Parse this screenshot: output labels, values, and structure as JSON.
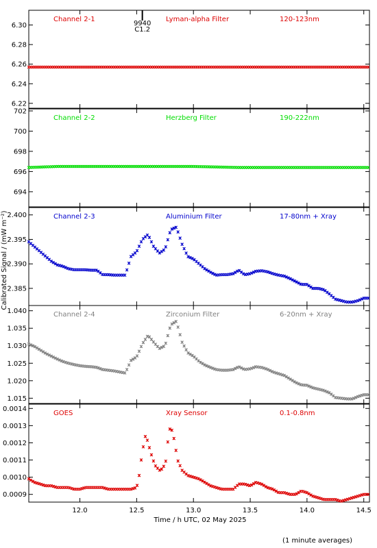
{
  "chart_data": [
    {
      "type": "scatter",
      "label": "Channel 2-1",
      "filter": "Lyman-alpha Filter",
      "band": "120-123nm",
      "color": "#dd0000",
      "ylim": [
        6.215,
        6.315
      ],
      "yticks": [
        6.22,
        6.24,
        6.26,
        6.28,
        6.3
      ],
      "ytick_labels": [
        "6.22",
        "6.24",
        "6.26",
        "6.28",
        "6.30"
      ],
      "series": [
        {
          "x": [
            11.55,
            14.55
          ],
          "y": [
            6.257,
            6.257
          ]
        }
      ]
    },
    {
      "type": "scatter",
      "label": "Channel 2-2",
      "filter": "Herzberg Filter",
      "band": "190-222nm",
      "color": "#00dd00",
      "ylim": [
        692.5,
        702.2
      ],
      "yticks": [
        694,
        696,
        698,
        700,
        702
      ],
      "ytick_labels": [
        "694",
        "696",
        "698",
        "700",
        "702"
      ],
      "series": [
        {
          "x": [
            11.55,
            11.8,
            13.0,
            13.4,
            14.55
          ],
          "y": [
            696.4,
            696.5,
            696.5,
            696.4,
            696.4
          ]
        }
      ]
    },
    {
      "type": "scatter",
      "label": "Channel 2-3",
      "filter": "Aluminium Filter",
      "band": "17-80nm + Xray",
      "color": "#0000cc",
      "ylim": [
        2.3815,
        2.4015
      ],
      "yticks": [
        2.385,
        2.39,
        2.395,
        2.4
      ],
      "ytick_labels": [
        "2.385",
        "2.390",
        "2.395",
        "2.400"
      ],
      "series": [
        {
          "x": [
            11.55,
            11.6,
            11.65,
            11.7,
            11.75,
            11.8,
            11.85,
            11.9,
            11.95,
            12.0,
            12.05,
            12.1,
            12.15,
            12.2,
            12.25,
            12.3,
            12.35,
            12.4,
            12.45,
            12.5,
            12.55,
            12.6,
            12.65,
            12.7,
            12.75,
            12.8,
            12.85,
            12.9,
            12.95,
            13.0,
            13.05,
            13.1,
            13.15,
            13.2,
            13.25,
            13.3,
            13.35,
            13.4,
            13.45,
            13.5,
            13.55,
            13.6,
            13.65,
            13.7,
            13.75,
            13.8,
            13.85,
            13.9,
            13.95,
            14.0,
            14.05,
            14.1,
            14.15,
            14.2,
            14.25,
            14.3,
            14.35,
            14.4,
            14.45,
            14.5,
            14.55
          ],
          "y": [
            2.3945,
            2.3935,
            2.3925,
            2.3915,
            2.3905,
            2.3898,
            2.3895,
            2.389,
            2.3888,
            2.3888,
            2.3888,
            2.3887,
            2.3887,
            2.3878,
            2.3878,
            2.3877,
            2.3877,
            2.3877,
            2.3915,
            2.3925,
            2.395,
            2.396,
            2.3935,
            2.3922,
            2.393,
            2.397,
            2.3975,
            2.394,
            2.3915,
            2.391,
            2.39,
            2.389,
            2.3883,
            2.3877,
            2.3878,
            2.3878,
            2.388,
            2.3887,
            2.3878,
            2.388,
            2.3885,
            2.3886,
            2.3884,
            2.388,
            2.3877,
            2.3875,
            2.387,
            2.3864,
            2.3858,
            2.3858,
            2.385,
            2.385,
            2.3847,
            2.3838,
            2.3828,
            2.3825,
            2.3822,
            2.3822,
            2.3825,
            2.383,
            2.383
          ]
        }
      ]
    },
    {
      "type": "scatter",
      "label": "Channel 2-4",
      "filter": "Zirconium Filter",
      "band": "6-20nm + Xray",
      "color": "#808080",
      "ylim": [
        1.0135,
        1.0415
      ],
      "yticks": [
        1.015,
        1.02,
        1.025,
        1.03,
        1.035,
        1.04
      ],
      "ytick_labels": [
        "1.015",
        "1.020",
        "1.025",
        "1.030",
        "1.035",
        "1.040"
      ],
      "series": [
        {
          "x": [
            11.55,
            11.6,
            11.65,
            11.7,
            11.75,
            11.8,
            11.85,
            11.9,
            11.95,
            12.0,
            12.05,
            12.1,
            12.15,
            12.2,
            12.25,
            12.3,
            12.35,
            12.4,
            12.45,
            12.5,
            12.55,
            12.6,
            12.65,
            12.7,
            12.75,
            12.8,
            12.85,
            12.9,
            12.95,
            13.0,
            13.05,
            13.1,
            13.15,
            13.2,
            13.25,
            13.3,
            13.35,
            13.4,
            13.45,
            13.5,
            13.55,
            13.6,
            13.65,
            13.7,
            13.75,
            13.8,
            13.85,
            13.9,
            13.95,
            14.0,
            14.05,
            14.1,
            14.15,
            14.2,
            14.25,
            14.3,
            14.35,
            14.4,
            14.45,
            14.5,
            14.55
          ],
          "y": [
            1.0305,
            1.0298,
            1.0288,
            1.0278,
            1.027,
            1.0262,
            1.0255,
            1.025,
            1.0246,
            1.0243,
            1.0241,
            1.024,
            1.0238,
            1.0232,
            1.023,
            1.0228,
            1.0225,
            1.0222,
            1.0258,
            1.0268,
            1.0305,
            1.033,
            1.031,
            1.0292,
            1.03,
            1.036,
            1.037,
            1.031,
            1.028,
            1.027,
            1.0255,
            1.0245,
            1.0238,
            1.0232,
            1.023,
            1.023,
            1.0232,
            1.024,
            1.0232,
            1.0234,
            1.024,
            1.0238,
            1.0233,
            1.0225,
            1.022,
            1.0215,
            1.0205,
            1.0195,
            1.0188,
            1.0187,
            1.018,
            1.0176,
            1.0172,
            1.0165,
            1.0152,
            1.015,
            1.0148,
            1.0148,
            1.0155,
            1.016,
            1.016
          ]
        }
      ]
    },
    {
      "type": "scatter",
      "label": "GOES",
      "filter": "Xray Sensor",
      "band": "0.1-0.8nm",
      "color": "#dd0000",
      "ylim": [
        0.000855,
        0.001425
      ],
      "yticks": [
        0.0009,
        0.001,
        0.0011,
        0.0012,
        0.0013,
        0.0014
      ],
      "ytick_labels": [
        "0.0009",
        "0.0010",
        "0.0011",
        "0.0012",
        "0.0013",
        "0.0014"
      ],
      "series": [
        {
          "x": [
            11.55,
            11.6,
            11.65,
            11.7,
            11.75,
            11.8,
            11.85,
            11.9,
            11.95,
            12.0,
            12.05,
            12.1,
            12.15,
            12.2,
            12.25,
            12.3,
            12.35,
            12.4,
            12.45,
            12.5,
            12.52,
            12.55,
            12.58,
            12.6,
            12.63,
            12.66,
            12.7,
            12.73,
            12.76,
            12.78,
            12.8,
            12.83,
            12.86,
            12.9,
            12.95,
            13.0,
            13.05,
            13.1,
            13.15,
            13.2,
            13.25,
            13.3,
            13.35,
            13.4,
            13.45,
            13.5,
            13.55,
            13.6,
            13.65,
            13.7,
            13.75,
            13.8,
            13.85,
            13.9,
            13.95,
            14.0,
            14.05,
            14.1,
            14.15,
            14.2,
            14.25,
            14.3,
            14.35,
            14.4,
            14.45,
            14.5,
            14.55
          ],
          "y": [
            0.00099,
            0.00097,
            0.00096,
            0.00095,
            0.00095,
            0.00094,
            0.00094,
            0.00094,
            0.00093,
            0.00093,
            0.00094,
            0.00094,
            0.00094,
            0.00094,
            0.00093,
            0.00093,
            0.00093,
            0.00093,
            0.00093,
            0.00094,
            0.001,
            0.00115,
            0.00125,
            0.0012,
            0.00113,
            0.00107,
            0.00104,
            0.00105,
            0.0011,
            0.00125,
            0.0013,
            0.00122,
            0.0011,
            0.00104,
            0.00101,
            0.001,
            0.00099,
            0.00097,
            0.00095,
            0.00094,
            0.00093,
            0.00093,
            0.00093,
            0.00096,
            0.00096,
            0.00095,
            0.00097,
            0.00096,
            0.00094,
            0.00093,
            0.00091,
            0.00091,
            0.0009,
            0.0009,
            0.00092,
            0.00091,
            0.00089,
            0.00088,
            0.00087,
            0.00087,
            0.00087,
            0.00086,
            0.00087,
            0.00088,
            0.00089,
            0.0009,
            0.0009
          ]
        }
      ]
    }
  ],
  "x_axis": {
    "xlim": [
      11.55,
      14.55
    ],
    "ticks": [
      12.0,
      12.5,
      13.0,
      13.5,
      14.0,
      14.5
    ],
    "tick_labels": [
      "12.0",
      "12.5",
      "13.0",
      "13.5",
      "14.0",
      "14.5"
    ],
    "label": "Time / h UTC, 02 May 2025"
  },
  "y_axis_label": "Calibrated Signal / (mW m⁻²)",
  "flare_marker": {
    "x": 12.55,
    "number": "9940",
    "class": "C1.2"
  },
  "footnote": "(1 minute averages)"
}
